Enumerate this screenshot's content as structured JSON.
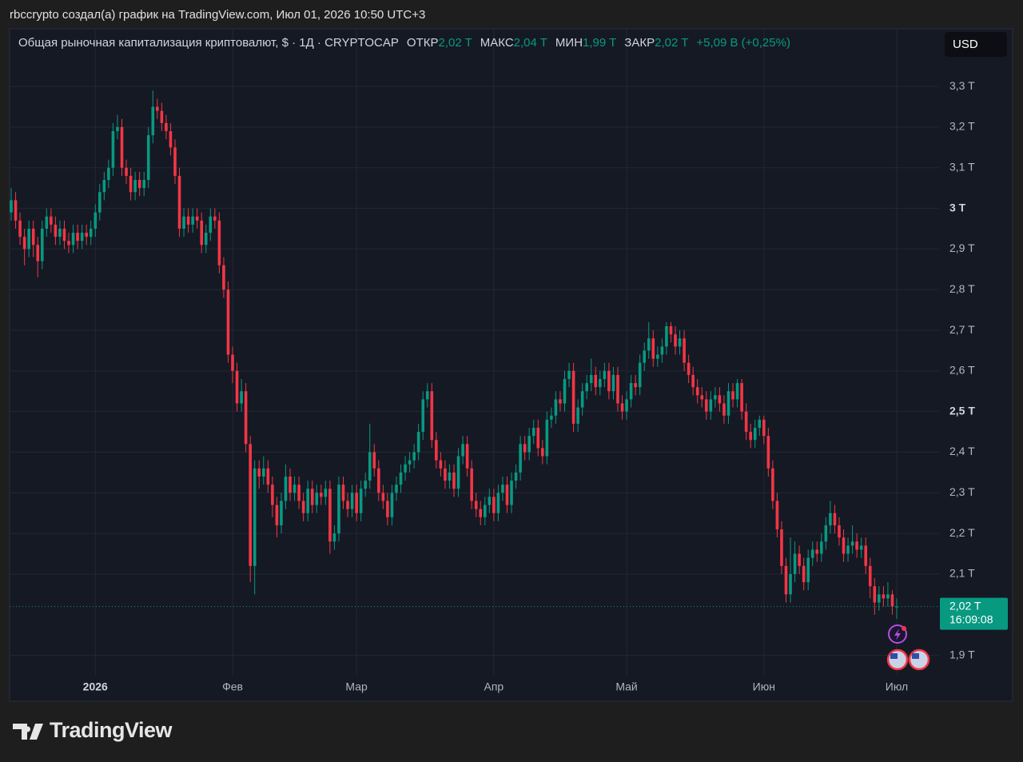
{
  "header": "rbccrypto создал(а) график на TradingView.com, Июл 01, 2026 10:50 UTC+3",
  "brand": "TradingView",
  "chart_data": {
    "type": "candlestick",
    "title": "Общая рыночная капитализация криптовалют, $ · 1Д · CRYPTOCAP",
    "legend": {
      "ohlc": [
        {
          "label": "ОТКР",
          "value": "2,02 T"
        },
        {
          "label": "МАКС",
          "value": "2,04 T"
        },
        {
          "label": "МИН",
          "value": "1,99 T"
        },
        {
          "label": "ЗАКР",
          "value": "2,02 T"
        }
      ],
      "change": "+5,09 B (+0,25%)"
    },
    "currency": "USD",
    "last_price_label": "2,02 T",
    "countdown": "16:09:08",
    "up_color": "#089981",
    "down_color": "#f23645",
    "grid": true,
    "ylim": [
      1.85,
      3.44
    ],
    "yticks": [
      {
        "value": 3.3,
        "label": "3,3 T"
      },
      {
        "value": 3.2,
        "label": "3,2 T"
      },
      {
        "value": 3.1,
        "label": "3,1 T"
      },
      {
        "value": 3,
        "label": "3 T"
      },
      {
        "value": 2.9,
        "label": "2,9 T"
      },
      {
        "value": 2.8,
        "label": "2,8 T"
      },
      {
        "value": 2.7,
        "label": "2,7 T"
      },
      {
        "value": 2.6,
        "label": "2,6 T"
      },
      {
        "value": 2.5,
        "label": "2,5 T"
      },
      {
        "value": 2.4,
        "label": "2,4 T"
      },
      {
        "value": 2.3,
        "label": "2,3 T"
      },
      {
        "value": 2.2,
        "label": "2,2 T"
      },
      {
        "value": 2.1,
        "label": "2,1 T"
      },
      {
        "value": 1.9,
        "label": "1,9 T"
      }
    ],
    "categories": [
      null,
      null,
      null,
      null,
      null,
      null,
      null,
      null,
      null,
      null,
      null,
      null,
      null,
      null,
      null,
      null,
      null,
      null,
      null,
      "2026",
      null,
      null,
      null,
      null,
      null,
      null,
      null,
      null,
      null,
      null,
      null,
      null,
      null,
      null,
      null,
      null,
      null,
      null,
      null,
      null,
      null,
      null,
      null,
      null,
      null,
      null,
      null,
      null,
      null,
      null,
      "Фев",
      null,
      null,
      null,
      null,
      null,
      null,
      null,
      null,
      null,
      null,
      null,
      null,
      null,
      null,
      null,
      null,
      null,
      null,
      null,
      null,
      null,
      null,
      null,
      null,
      null,
      null,
      null,
      "Мар",
      null,
      null,
      null,
      null,
      null,
      null,
      null,
      null,
      null,
      null,
      null,
      null,
      null,
      null,
      null,
      null,
      null,
      null,
      null,
      null,
      null,
      null,
      null,
      null,
      null,
      null,
      null,
      null,
      null,
      null,
      "Апр",
      null,
      null,
      null,
      null,
      null,
      null,
      null,
      null,
      null,
      null,
      null,
      null,
      null,
      null,
      null,
      null,
      null,
      null,
      null,
      null,
      null,
      null,
      null,
      null,
      null,
      null,
      null,
      null,
      null,
      "Май",
      null,
      null,
      null,
      null,
      null,
      null,
      null,
      null,
      null,
      null,
      null,
      null,
      null,
      null,
      null,
      null,
      null,
      null,
      null,
      null,
      null,
      null,
      null,
      null,
      null,
      null,
      null,
      null,
      null,
      null,
      "Июн",
      null,
      null,
      null,
      null,
      null,
      null,
      null,
      null,
      null,
      null,
      null,
      null,
      null,
      null,
      null,
      null,
      null,
      null,
      null,
      null,
      null,
      null,
      null,
      null,
      null,
      null,
      null,
      null,
      null,
      "Июл"
    ],
    "open": [
      2.99,
      3.02,
      2.97,
      2.93,
      2.9,
      2.95,
      2.91,
      2.87,
      2.95,
      2.98,
      2.96,
      2.93,
      2.95,
      2.92,
      2.91,
      2.94,
      2.92,
      2.94,
      2.93,
      2.95,
      2.99,
      3.04,
      3.07,
      3.1,
      3.19,
      3.2,
      3.1,
      3.08,
      3.04,
      3.07,
      3.05,
      3.07,
      3.18,
      3.25,
      3.24,
      3.21,
      3.19,
      3.15,
      3.08,
      2.95,
      2.98,
      2.96,
      2.98,
      2.97,
      2.91,
      2.94,
      2.98,
      2.97,
      2.86,
      2.8,
      2.64,
      2.6,
      2.52,
      2.55,
      2.42,
      2.12,
      2.36,
      2.34,
      2.36,
      2.32,
      2.27,
      2.22,
      2.28,
      2.34,
      2.3,
      2.32,
      2.28,
      2.25,
      2.31,
      2.27,
      2.3,
      2.29,
      2.31,
      2.18,
      2.2,
      2.32,
      2.28,
      2.26,
      2.3,
      2.25,
      2.31,
      2.33,
      2.4,
      2.36,
      2.3,
      2.28,
      2.24,
      2.3,
      2.32,
      2.35,
      2.37,
      2.38,
      2.4,
      2.45,
      2.53,
      2.55,
      2.43,
      2.38,
      2.36,
      2.33,
      2.35,
      2.31,
      2.39,
      2.42,
      2.36,
      2.28,
      2.26,
      2.24,
      2.27,
      2.29,
      2.25,
      2.3,
      2.32,
      2.27,
      2.33,
      2.35,
      2.42,
      2.4,
      2.44,
      2.46,
      2.41,
      2.39,
      2.48,
      2.49,
      2.53,
      2.52,
      2.58,
      2.6,
      2.47,
      2.51,
      2.55,
      2.57,
      2.59,
      2.56,
      2.58,
      2.6,
      2.55,
      2.59,
      2.52,
      2.5,
      2.53,
      2.57,
      2.56,
      2.62,
      2.65,
      2.68,
      2.63,
      2.64,
      2.66,
      2.71,
      2.69,
      2.66,
      2.68,
      2.62,
      2.59,
      2.56,
      2.54,
      2.53,
      2.5,
      2.53,
      2.54,
      2.52,
      2.49,
      2.55,
      2.53,
      2.57,
      2.5,
      2.45,
      2.43,
      2.46,
      2.48,
      2.44,
      2.36,
      2.28,
      2.21,
      2.12,
      2.05,
      2.1,
      2.15,
      2.12,
      2.08,
      2.14,
      2.16,
      2.15,
      2.18,
      2.22,
      2.25,
      2.22,
      2.19,
      2.15,
      2.17,
      2.18,
      2.16,
      2.17,
      2.12,
      2.07,
      2.03,
      2.05,
      2.04,
      2.05,
      2.02
    ],
    "high": [
      3.05,
      3.04,
      2.99,
      2.95,
      2.97,
      2.97,
      2.93,
      2.97,
      3.0,
      3.0,
      2.98,
      2.97,
      2.97,
      2.94,
      2.96,
      2.96,
      2.96,
      2.96,
      2.97,
      3.01,
      3.06,
      3.09,
      3.12,
      3.21,
      3.23,
      3.22,
      3.12,
      3.1,
      3.09,
      3.09,
      3.09,
      3.2,
      3.29,
      3.27,
      3.26,
      3.23,
      3.21,
      3.17,
      3.1,
      3.0,
      3.0,
      3.0,
      3.0,
      2.99,
      2.96,
      3.0,
      3.0,
      2.99,
      2.88,
      2.82,
      2.66,
      2.62,
      2.58,
      2.57,
      2.44,
      2.38,
      2.38,
      2.39,
      2.38,
      2.34,
      2.29,
      2.3,
      2.37,
      2.36,
      2.34,
      2.34,
      2.3,
      2.33,
      2.33,
      2.32,
      2.32,
      2.33,
      2.33,
      2.22,
      2.34,
      2.34,
      2.3,
      2.32,
      2.32,
      2.33,
      2.35,
      2.47,
      2.42,
      2.38,
      2.32,
      2.3,
      2.32,
      2.34,
      2.37,
      2.39,
      2.4,
      2.42,
      2.47,
      2.55,
      2.57,
      2.57,
      2.45,
      2.4,
      2.38,
      2.37,
      2.37,
      2.41,
      2.44,
      2.44,
      2.38,
      2.3,
      2.28,
      2.29,
      2.31,
      2.31,
      2.32,
      2.34,
      2.34,
      2.35,
      2.37,
      2.44,
      2.44,
      2.46,
      2.48,
      2.48,
      2.43,
      2.5,
      2.51,
      2.55,
      2.55,
      2.6,
      2.62,
      2.62,
      2.53,
      2.57,
      2.59,
      2.63,
      2.61,
      2.6,
      2.62,
      2.62,
      2.61,
      2.61,
      2.54,
      2.55,
      2.59,
      2.59,
      2.64,
      2.67,
      2.72,
      2.7,
      2.66,
      2.68,
      2.72,
      2.72,
      2.71,
      2.7,
      2.7,
      2.64,
      2.61,
      2.58,
      2.56,
      2.55,
      2.55,
      2.56,
      2.56,
      2.54,
      2.57,
      2.57,
      2.58,
      2.58,
      2.52,
      2.47,
      2.48,
      2.49,
      2.49,
      2.46,
      2.38,
      2.3,
      2.23,
      2.14,
      2.19,
      2.18,
      2.17,
      2.14,
      2.16,
      2.18,
      2.18,
      2.2,
      2.24,
      2.28,
      2.27,
      2.24,
      2.21,
      2.19,
      2.22,
      2.2,
      2.19,
      2.19,
      2.14,
      2.09,
      2.07,
      2.07,
      2.08,
      2.06,
      2.04
    ],
    "low": [
      2.97,
      2.95,
      2.91,
      2.86,
      2.88,
      2.88,
      2.83,
      2.85,
      2.93,
      2.94,
      2.91,
      2.91,
      2.9,
      2.89,
      2.89,
      2.9,
      2.9,
      2.91,
      2.91,
      2.93,
      2.97,
      3.02,
      3.05,
      3.08,
      3.17,
      3.08,
      3.06,
      3.02,
      3.02,
      3.03,
      3.03,
      3.05,
      3.16,
      3.22,
      3.19,
      3.17,
      3.13,
      3.06,
      2.93,
      2.93,
      2.94,
      2.94,
      2.95,
      2.89,
      2.89,
      2.92,
      2.95,
      2.84,
      2.78,
      2.62,
      2.57,
      2.5,
      2.5,
      2.4,
      2.08,
      2.05,
      2.31,
      2.32,
      2.3,
      2.24,
      2.19,
      2.2,
      2.26,
      2.28,
      2.28,
      2.26,
      2.23,
      2.23,
      2.25,
      2.25,
      2.27,
      2.27,
      2.15,
      2.16,
      2.18,
      2.26,
      2.24,
      2.24,
      2.23,
      2.23,
      2.29,
      2.31,
      2.34,
      2.28,
      2.26,
      2.22,
      2.22,
      2.28,
      2.3,
      2.33,
      2.35,
      2.36,
      2.38,
      2.43,
      2.51,
      2.41,
      2.36,
      2.34,
      2.31,
      2.31,
      2.29,
      2.29,
      2.37,
      2.34,
      2.26,
      2.24,
      2.22,
      2.22,
      2.25,
      2.23,
      2.23,
      2.28,
      2.25,
      2.25,
      2.31,
      2.33,
      2.38,
      2.38,
      2.42,
      2.39,
      2.37,
      2.37,
      2.46,
      2.47,
      2.5,
      2.5,
      2.56,
      2.45,
      2.45,
      2.49,
      2.53,
      2.55,
      2.54,
      2.54,
      2.56,
      2.53,
      2.53,
      2.5,
      2.48,
      2.48,
      2.51,
      2.54,
      2.54,
      2.6,
      2.63,
      2.61,
      2.61,
      2.62,
      2.64,
      2.67,
      2.64,
      2.64,
      2.6,
      2.57,
      2.54,
      2.52,
      2.51,
      2.48,
      2.48,
      2.51,
      2.5,
      2.47,
      2.47,
      2.51,
      2.51,
      2.48,
      2.43,
      2.41,
      2.41,
      2.44,
      2.42,
      2.34,
      2.26,
      2.19,
      2.1,
      2.03,
      2.03,
      2.08,
      2.1,
      2.06,
      2.06,
      2.12,
      2.13,
      2.13,
      2.16,
      2.2,
      2.2,
      2.17,
      2.13,
      2.13,
      2.15,
      2.14,
      2.14,
      2.1,
      2.04,
      2.0,
      2.01,
      2.02,
      2.02,
      2.0,
      1.99
    ],
    "close": [
      3.02,
      2.97,
      2.93,
      2.9,
      2.95,
      2.91,
      2.87,
      2.95,
      2.98,
      2.96,
      2.93,
      2.95,
      2.92,
      2.91,
      2.94,
      2.92,
      2.94,
      2.93,
      2.95,
      2.99,
      3.04,
      3.07,
      3.1,
      3.19,
      3.2,
      3.1,
      3.08,
      3.04,
      3.07,
      3.05,
      3.07,
      3.18,
      3.25,
      3.24,
      3.21,
      3.19,
      3.15,
      3.08,
      2.95,
      2.98,
      2.96,
      2.98,
      2.97,
      2.91,
      2.94,
      2.98,
      2.97,
      2.86,
      2.8,
      2.64,
      2.6,
      2.52,
      2.55,
      2.42,
      2.12,
      2.36,
      2.34,
      2.36,
      2.32,
      2.27,
      2.22,
      2.28,
      2.34,
      2.3,
      2.32,
      2.28,
      2.25,
      2.31,
      2.27,
      2.3,
      2.29,
      2.31,
      2.18,
      2.2,
      2.32,
      2.28,
      2.26,
      2.3,
      2.25,
      2.31,
      2.33,
      2.4,
      2.36,
      2.3,
      2.28,
      2.24,
      2.3,
      2.32,
      2.35,
      2.37,
      2.38,
      2.4,
      2.45,
      2.53,
      2.55,
      2.43,
      2.38,
      2.36,
      2.33,
      2.35,
      2.31,
      2.39,
      2.42,
      2.36,
      2.28,
      2.26,
      2.24,
      2.27,
      2.29,
      2.25,
      2.3,
      2.32,
      2.27,
      2.33,
      2.35,
      2.42,
      2.4,
      2.44,
      2.46,
      2.41,
      2.39,
      2.48,
      2.49,
      2.53,
      2.52,
      2.58,
      2.6,
      2.47,
      2.51,
      2.55,
      2.57,
      2.59,
      2.56,
      2.58,
      2.6,
      2.55,
      2.59,
      2.52,
      2.5,
      2.53,
      2.57,
      2.56,
      2.62,
      2.65,
      2.68,
      2.63,
      2.64,
      2.66,
      2.71,
      2.69,
      2.66,
      2.68,
      2.62,
      2.59,
      2.56,
      2.54,
      2.53,
      2.5,
      2.53,
      2.54,
      2.52,
      2.49,
      2.55,
      2.53,
      2.57,
      2.5,
      2.45,
      2.43,
      2.46,
      2.48,
      2.44,
      2.36,
      2.28,
      2.21,
      2.12,
      2.05,
      2.1,
      2.15,
      2.12,
      2.08,
      2.14,
      2.16,
      2.15,
      2.18,
      2.22,
      2.25,
      2.22,
      2.19,
      2.15,
      2.17,
      2.18,
      2.16,
      2.17,
      2.12,
      2.07,
      2.03,
      2.05,
      2.04,
      2.05,
      2.02,
      2.02
    ]
  }
}
